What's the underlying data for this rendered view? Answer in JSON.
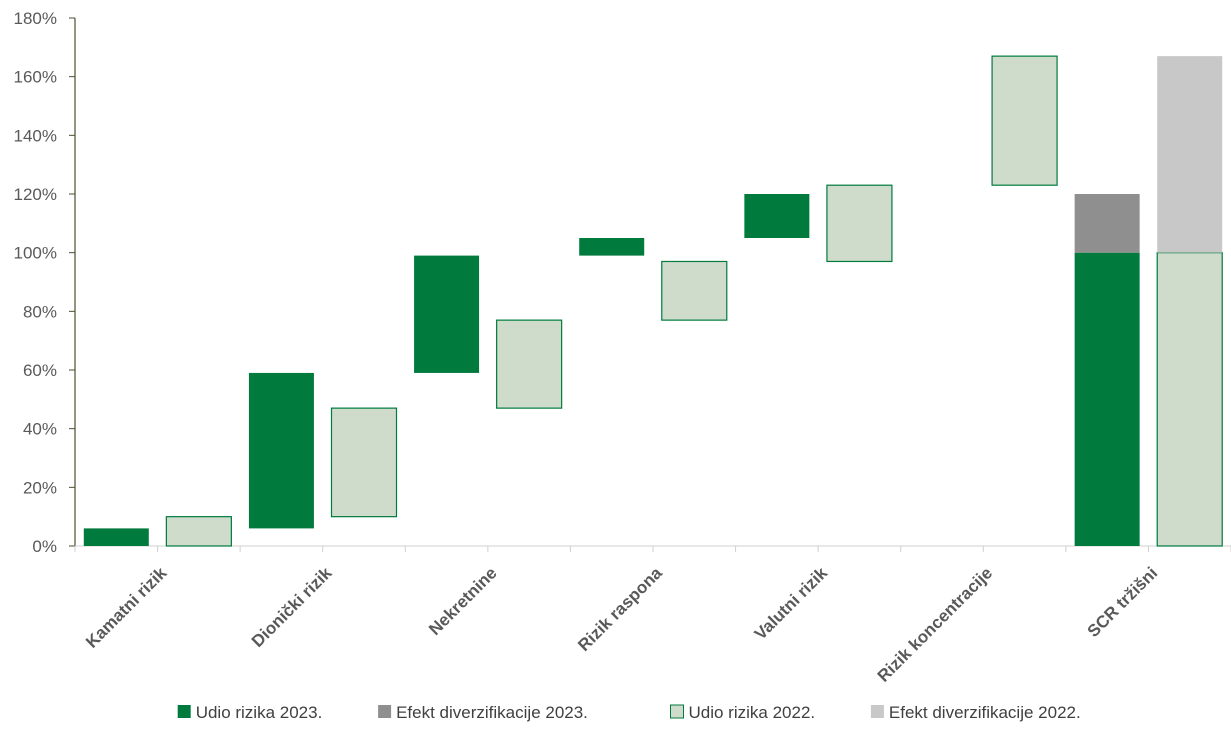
{
  "chart_data": {
    "type": "bar",
    "subtype": "waterfall",
    "categories": [
      "Kamatni rizik",
      "Dionički rizik",
      "Nekretnine",
      "Rizik raspona",
      "Valutni rizik",
      "Rizik koncentracije",
      "SCR tržišni"
    ],
    "yticks": [
      "0%",
      "20%",
      "40%",
      "60%",
      "80%",
      "100%",
      "120%",
      "140%",
      "160%",
      "180%"
    ],
    "ylim": [
      0,
      180
    ],
    "unit": "%",
    "series": [
      {
        "key": "s2023",
        "name": "Udio rizika 2023.",
        "color": "#007a3d",
        "ranges": [
          [
            0,
            6
          ],
          [
            6,
            59
          ],
          [
            59,
            99
          ],
          [
            99,
            105
          ],
          [
            105,
            120
          ],
          null,
          [
            0,
            100
          ]
        ]
      },
      {
        "key": "div2023",
        "name": "Efekt diverzifikacije 2023.",
        "color": "#8f8f8f",
        "ranges": [
          null,
          null,
          null,
          null,
          null,
          null,
          [
            100,
            120
          ]
        ]
      },
      {
        "key": "s2022",
        "name": "Udio rizika 2022.",
        "color": "#cfdccc",
        "border": "#007a3d",
        "ranges": [
          [
            0,
            10
          ],
          [
            10,
            47
          ],
          [
            47,
            77
          ],
          [
            77,
            97
          ],
          [
            97,
            123
          ],
          [
            123,
            167
          ],
          [
            0,
            100
          ]
        ]
      },
      {
        "key": "div2022",
        "name": "Efekt diverzifikacije 2022.",
        "color": "#c8c8c8",
        "ranges": [
          null,
          null,
          null,
          null,
          null,
          null,
          [
            100,
            167
          ]
        ]
      }
    ],
    "legend_position": "bottom",
    "grid": false,
    "axis_color": "#4d4d2e"
  }
}
